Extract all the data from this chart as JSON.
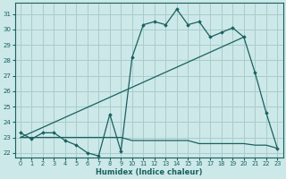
{
  "title": "",
  "xlabel": "Humidex (Indice chaleur)",
  "bg_color": "#cce8e8",
  "grid_color": "#aacccc",
  "line_color": "#1a6060",
  "xlim": [
    -0.5,
    23.5
  ],
  "ylim": [
    21.7,
    31.7
  ],
  "xticks": [
    0,
    1,
    2,
    3,
    4,
    5,
    6,
    7,
    8,
    9,
    10,
    11,
    12,
    13,
    14,
    15,
    16,
    17,
    18,
    19,
    20,
    21,
    22,
    23
  ],
  "yticks": [
    22,
    23,
    24,
    25,
    26,
    27,
    28,
    29,
    30,
    31
  ],
  "series1_x": [
    0,
    1,
    2,
    3,
    4,
    5,
    6,
    7,
    8,
    9,
    10,
    11,
    12,
    13,
    14,
    15,
    16,
    17,
    18,
    19,
    20,
    21,
    22,
    23
  ],
  "series1_y": [
    23.3,
    22.9,
    23.3,
    23.3,
    22.8,
    22.5,
    22.0,
    21.8,
    24.5,
    22.1,
    28.2,
    30.3,
    30.5,
    30.3,
    31.3,
    30.3,
    30.5,
    29.5,
    29.8,
    30.1,
    29.5,
    27.2,
    24.6,
    22.3
  ],
  "series2_x": [
    0,
    20
  ],
  "series2_y": [
    23.0,
    29.5
  ],
  "series3_x": [
    0,
    1,
    2,
    3,
    4,
    5,
    6,
    7,
    8,
    9,
    10,
    11,
    12,
    13,
    14,
    15,
    16,
    17,
    18,
    19,
    20,
    21,
    22,
    23
  ],
  "series3_y": [
    23.0,
    23.0,
    23.0,
    23.0,
    23.0,
    23.0,
    23.0,
    23.0,
    23.0,
    23.0,
    22.8,
    22.8,
    22.8,
    22.8,
    22.8,
    22.8,
    22.6,
    22.6,
    22.6,
    22.6,
    22.6,
    22.5,
    22.5,
    22.3
  ]
}
